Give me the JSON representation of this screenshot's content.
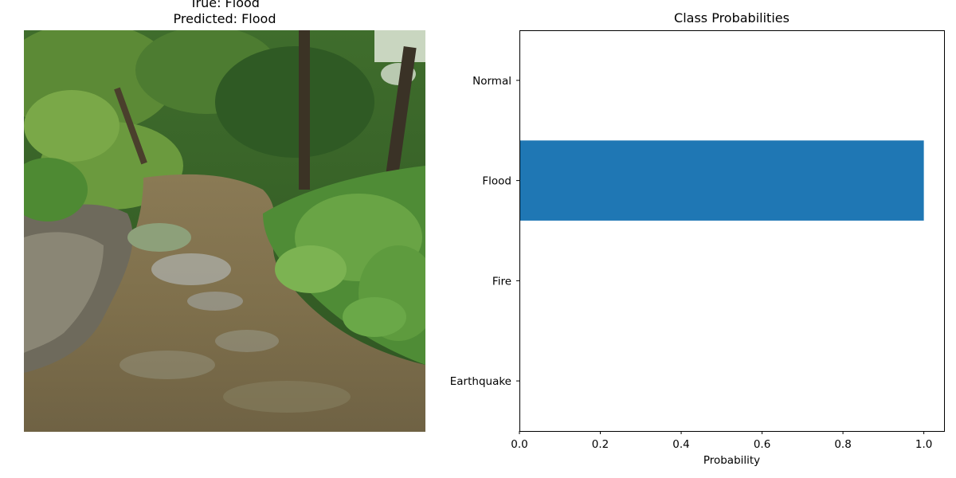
{
  "image_panel": {
    "title_line1": "True: Flood",
    "title_line2": "Predicted: Flood"
  },
  "chart_data": {
    "type": "bar",
    "orientation": "horizontal",
    "title": "Class Probabilities",
    "xlabel": "Probability",
    "ylabel": "",
    "categories": [
      "Earthquake",
      "Fire",
      "Flood",
      "Normal"
    ],
    "values": [
      0.0,
      0.0,
      1.0,
      0.0
    ],
    "xlim": [
      0,
      1.05
    ],
    "xticks": [
      "0.0",
      "0.2",
      "0.4",
      "0.6",
      "0.8",
      "1.0"
    ],
    "bar_color": "#1f77b4",
    "grid": false,
    "legend": "none"
  }
}
